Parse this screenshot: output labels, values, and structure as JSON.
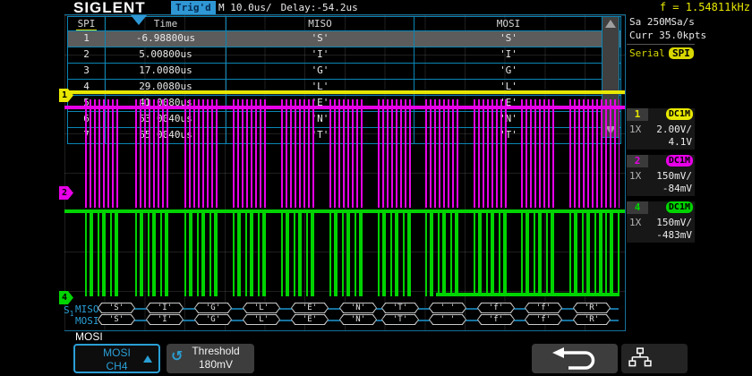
{
  "top_bar": {
    "logo": "SIGLENT",
    "trigger_status": "Trig'd",
    "timebase": "M 10.0us/",
    "delay": "Delay:-54.2us",
    "frequency": "f = 1.54811kHz"
  },
  "decode_table": {
    "columns": [
      "SPI",
      "Time",
      "MISO",
      "MOSI"
    ],
    "selected_row": 1,
    "rows": [
      {
        "n": "1",
        "time": "-6.98800us",
        "miso": "'S'",
        "mosi": "'S'"
      },
      {
        "n": "2",
        "time": "5.00800us",
        "miso": "'I'",
        "mosi": "'I'"
      },
      {
        "n": "3",
        "time": "17.0080us",
        "miso": "'G'",
        "mosi": "'G'"
      },
      {
        "n": "4",
        "time": "29.0080us",
        "miso": "'L'",
        "mosi": "'L'"
      },
      {
        "n": "5",
        "time": "41.0080us",
        "miso": "'E'",
        "mosi": "'E'"
      },
      {
        "n": "6",
        "time": "53.0040us",
        "miso": "'N'",
        "mosi": "'N'"
      },
      {
        "n": "7",
        "time": "65.0040us",
        "miso": "'T'",
        "mosi": "'T'"
      }
    ]
  },
  "sidebar": {
    "sample_rate": "Sa 250MSa/s",
    "memory_depth": "Curr 35.0kpts",
    "serial_label": "Serial",
    "serial_type": "SPI",
    "channels": [
      {
        "n": "1",
        "coupling": "DC1M",
        "probe": "1X",
        "scale": "2.00V/",
        "offset": "4.1V",
        "color": "#e8e800"
      },
      {
        "n": "2",
        "coupling": "DC1M",
        "probe": "1X",
        "scale": "150mV/",
        "offset": "-84mV",
        "color": "#e800e8"
      },
      {
        "n": "4",
        "coupling": "DC1M",
        "probe": "1X",
        "scale": "150mV/",
        "offset": "-483mV",
        "color": "#00d400"
      }
    ]
  },
  "bus": {
    "label_main": "S",
    "label_sub": "1",
    "lanes": [
      {
        "label": "MISO",
        "values": [
          "'S'",
          "'I'",
          "'G'",
          "'L'",
          "'E'",
          "'N'",
          "'T'",
          "' '",
          "'f'",
          "'f'",
          "'R'"
        ]
      },
      {
        "label": "MOSI",
        "values": [
          "'S'",
          "'I'",
          "'G'",
          "'L'",
          "'E'",
          "'N'",
          "'T'",
          "' '",
          "'f'",
          "'f'",
          "'R'"
        ]
      }
    ]
  },
  "bottom_bar": {
    "menu_title": "MOSI",
    "source_button": {
      "line1": "MOSI",
      "line2": "CH4"
    },
    "threshold_button": {
      "line1": "Threshold",
      "line2": "180mV"
    }
  },
  "colors": {
    "accent_cyan": "#2a9fd6",
    "table_border": "#0a85b5",
    "ch1_yellow": "#e8e800",
    "ch2_magenta": "#e800e8",
    "ch4_green": "#00d400",
    "freq_yellow": "#e8e800"
  }
}
